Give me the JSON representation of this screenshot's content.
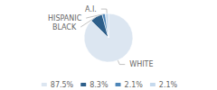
{
  "chart_data": {
    "type": "pie",
    "categories": [
      "WHITE",
      "BLACK",
      "HISPANIC",
      "A.I."
    ],
    "values": [
      87.5,
      8.3,
      2.1,
      2.1
    ],
    "value_labels": [
      "87.5%",
      "8.3%",
      "2.1%",
      "2.1%"
    ],
    "colors": [
      "#dce6f1",
      "#2e5f8a",
      "#4f86b8",
      "#c5d9ed"
    ],
    "legend": "bottom"
  }
}
